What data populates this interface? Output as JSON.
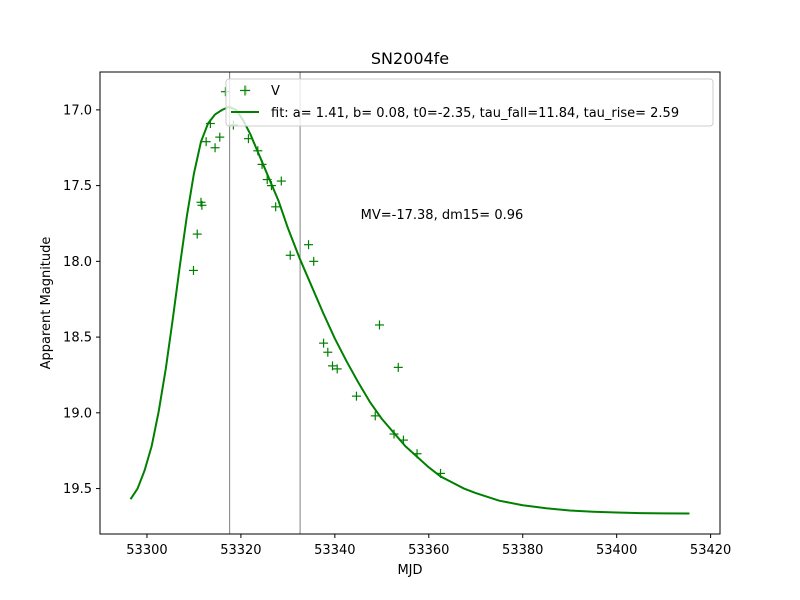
{
  "chart_data": {
    "type": "scatter",
    "title": "SN2004fe",
    "xlabel": "MJD",
    "ylabel": "Apparent Magnitude",
    "xlim": [
      53290,
      53422
    ],
    "ylim": [
      19.8,
      16.75
    ],
    "y_inverted": true,
    "grid": false,
    "xticks": [
      53300,
      53320,
      53340,
      53360,
      53380,
      53400,
      53420
    ],
    "yticks": [
      17.0,
      17.5,
      18.0,
      18.5,
      19.0,
      19.5
    ],
    "xtick_labels": [
      "53300",
      "53320",
      "53340",
      "53360",
      "53380",
      "53400",
      "53420"
    ],
    "ytick_labels": [
      "17.0",
      "17.5",
      "18.0",
      "18.5",
      "19.0",
      "19.5"
    ],
    "vlines": [
      53317.6,
      53332.6
    ],
    "annotation": "MV=-17.38, dm15= 0.96",
    "annotation_pos": [
      53345.5,
      17.72
    ],
    "legend_placement": "top-right",
    "series": [
      {
        "name": "V",
        "kind": "points",
        "marker": "+",
        "color": "#008000",
        "points": [
          [
            53309.9,
            18.06
          ],
          [
            53310.7,
            17.82
          ],
          [
            53311.5,
            17.61
          ],
          [
            53311.7,
            17.63
          ],
          [
            53312.6,
            17.21
          ],
          [
            53313.5,
            17.09
          ],
          [
            53314.5,
            17.25
          ],
          [
            53315.5,
            17.18
          ],
          [
            53316.7,
            16.88
          ],
          [
            53318.4,
            17.1
          ],
          [
            53321.2,
            16.87
          ],
          [
            53321.6,
            17.19
          ],
          [
            53323.6,
            17.27
          ],
          [
            53324.5,
            17.36
          ],
          [
            53325.6,
            17.46
          ],
          [
            53326.5,
            17.5
          ],
          [
            53327.4,
            17.64
          ],
          [
            53328.6,
            17.47
          ],
          [
            53330.5,
            17.96
          ],
          [
            53334.4,
            17.89
          ],
          [
            53335.5,
            18.0
          ],
          [
            53337.6,
            18.54
          ],
          [
            53338.5,
            18.6
          ],
          [
            53339.5,
            18.69
          ],
          [
            53340.5,
            18.71
          ],
          [
            53344.6,
            18.89
          ],
          [
            53348.6,
            19.02
          ],
          [
            53349.5,
            18.42
          ],
          [
            53352.6,
            19.14
          ],
          [
            53353.5,
            18.7
          ],
          [
            53354.6,
            19.18
          ],
          [
            53357.5,
            19.27
          ],
          [
            53362.5,
            19.4
          ]
        ]
      },
      {
        "name": "fit: a= 1.41, b= 0.08, t0=-2.35, tau_fall=11.84, tau_rise= 2.59",
        "kind": "line",
        "color": "#008000",
        "points": [
          [
            53296.5,
            19.57
          ],
          [
            53298.0,
            19.5
          ],
          [
            53299.5,
            19.38
          ],
          [
            53301.0,
            19.22
          ],
          [
            53302.5,
            18.99
          ],
          [
            53304.0,
            18.71
          ],
          [
            53305.5,
            18.38
          ],
          [
            53307.0,
            18.03
          ],
          [
            53308.5,
            17.7
          ],
          [
            53310.0,
            17.42
          ],
          [
            53311.5,
            17.21
          ],
          [
            53313.0,
            17.09
          ],
          [
            53314.5,
            17.03
          ],
          [
            53316.0,
            17.0
          ],
          [
            53317.5,
            16.98
          ],
          [
            53319.0,
            17.0
          ],
          [
            53320.5,
            17.07
          ],
          [
            53322.0,
            17.16
          ],
          [
            53323.5,
            17.27
          ],
          [
            53325.0,
            17.38
          ],
          [
            53326.5,
            17.49
          ],
          [
            53328.0,
            17.6
          ],
          [
            53330.0,
            17.78
          ],
          [
            53332.5,
            17.98
          ],
          [
            53335.0,
            18.16
          ],
          [
            53337.5,
            18.34
          ],
          [
            53340.0,
            18.51
          ],
          [
            53342.5,
            18.66
          ],
          [
            53345.0,
            18.8
          ],
          [
            53347.5,
            18.93
          ],
          [
            53350.0,
            19.04
          ],
          [
            53352.5,
            19.13
          ],
          [
            53355.0,
            19.22
          ],
          [
            53357.5,
            19.29
          ],
          [
            53360.0,
            19.36
          ],
          [
            53362.5,
            19.42
          ],
          [
            53365.0,
            19.46
          ],
          [
            53367.5,
            19.5
          ],
          [
            53370.0,
            19.53
          ],
          [
            53375.0,
            19.58
          ],
          [
            53380.0,
            19.61
          ],
          [
            53385.0,
            19.63
          ],
          [
            53390.0,
            19.645
          ],
          [
            53395.0,
            19.653
          ],
          [
            53400.0,
            19.658
          ],
          [
            53405.0,
            19.662
          ],
          [
            53410.0,
            19.664
          ],
          [
            53415.5,
            19.665
          ]
        ]
      }
    ]
  }
}
